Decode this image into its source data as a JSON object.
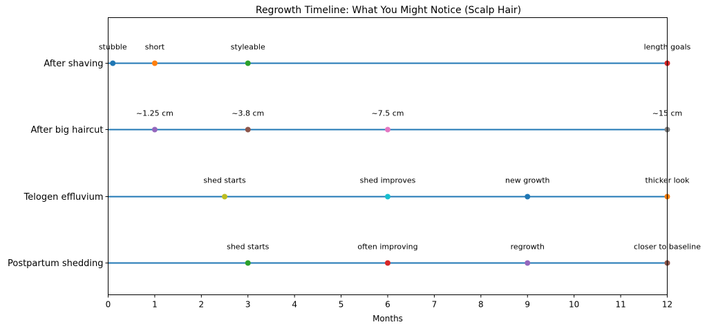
{
  "chart_data": {
    "type": "scatter",
    "title": "Regrowth Timeline: What You Might Notice (Scalp Hair)",
    "xlabel": "Months",
    "ylabel": "",
    "xlim": [
      0,
      12
    ],
    "xticks": [
      0,
      1,
      2,
      3,
      4,
      5,
      6,
      7,
      8,
      9,
      10,
      11,
      12
    ],
    "line_color": "#1f77b4",
    "rows": [
      {
        "name": "After shaving",
        "points": [
          {
            "x": 0.1,
            "label": "stubble",
            "color": "#1f77b4"
          },
          {
            "x": 1,
            "label": "short",
            "color": "#ff7f0e"
          },
          {
            "x": 3,
            "label": "styleable",
            "color": "#2ca02c"
          },
          {
            "x": 12,
            "label": "length goals",
            "color": "#d62728"
          }
        ]
      },
      {
        "name": "After big haircut",
        "points": [
          {
            "x": 1,
            "label": "~1.25 cm",
            "color": "#9467bd"
          },
          {
            "x": 3,
            "label": "~3.8 cm",
            "color": "#8c564b"
          },
          {
            "x": 6,
            "label": "~7.5 cm",
            "color": "#e377c2"
          },
          {
            "x": 12,
            "label": "~15 cm",
            "color": "#7f7f7f"
          }
        ]
      },
      {
        "name": "Telogen effluvium",
        "points": [
          {
            "x": 2.5,
            "label": "shed starts",
            "color": "#bcbd22"
          },
          {
            "x": 6,
            "label": "shed improves",
            "color": "#17becf"
          },
          {
            "x": 9,
            "label": "new growth",
            "color": "#1f77b4"
          },
          {
            "x": 12,
            "label": "thicker look",
            "color": "#ff7f0e"
          }
        ]
      },
      {
        "name": "Postpartum shedding",
        "points": [
          {
            "x": 3,
            "label": "shed starts",
            "color": "#2ca02c"
          },
          {
            "x": 6,
            "label": "often improving",
            "color": "#d62728"
          },
          {
            "x": 9,
            "label": "regrowth",
            "color": "#9467bd"
          },
          {
            "x": 12,
            "label": "closer to baseline",
            "color": "#8c564b"
          }
        ]
      }
    ]
  }
}
